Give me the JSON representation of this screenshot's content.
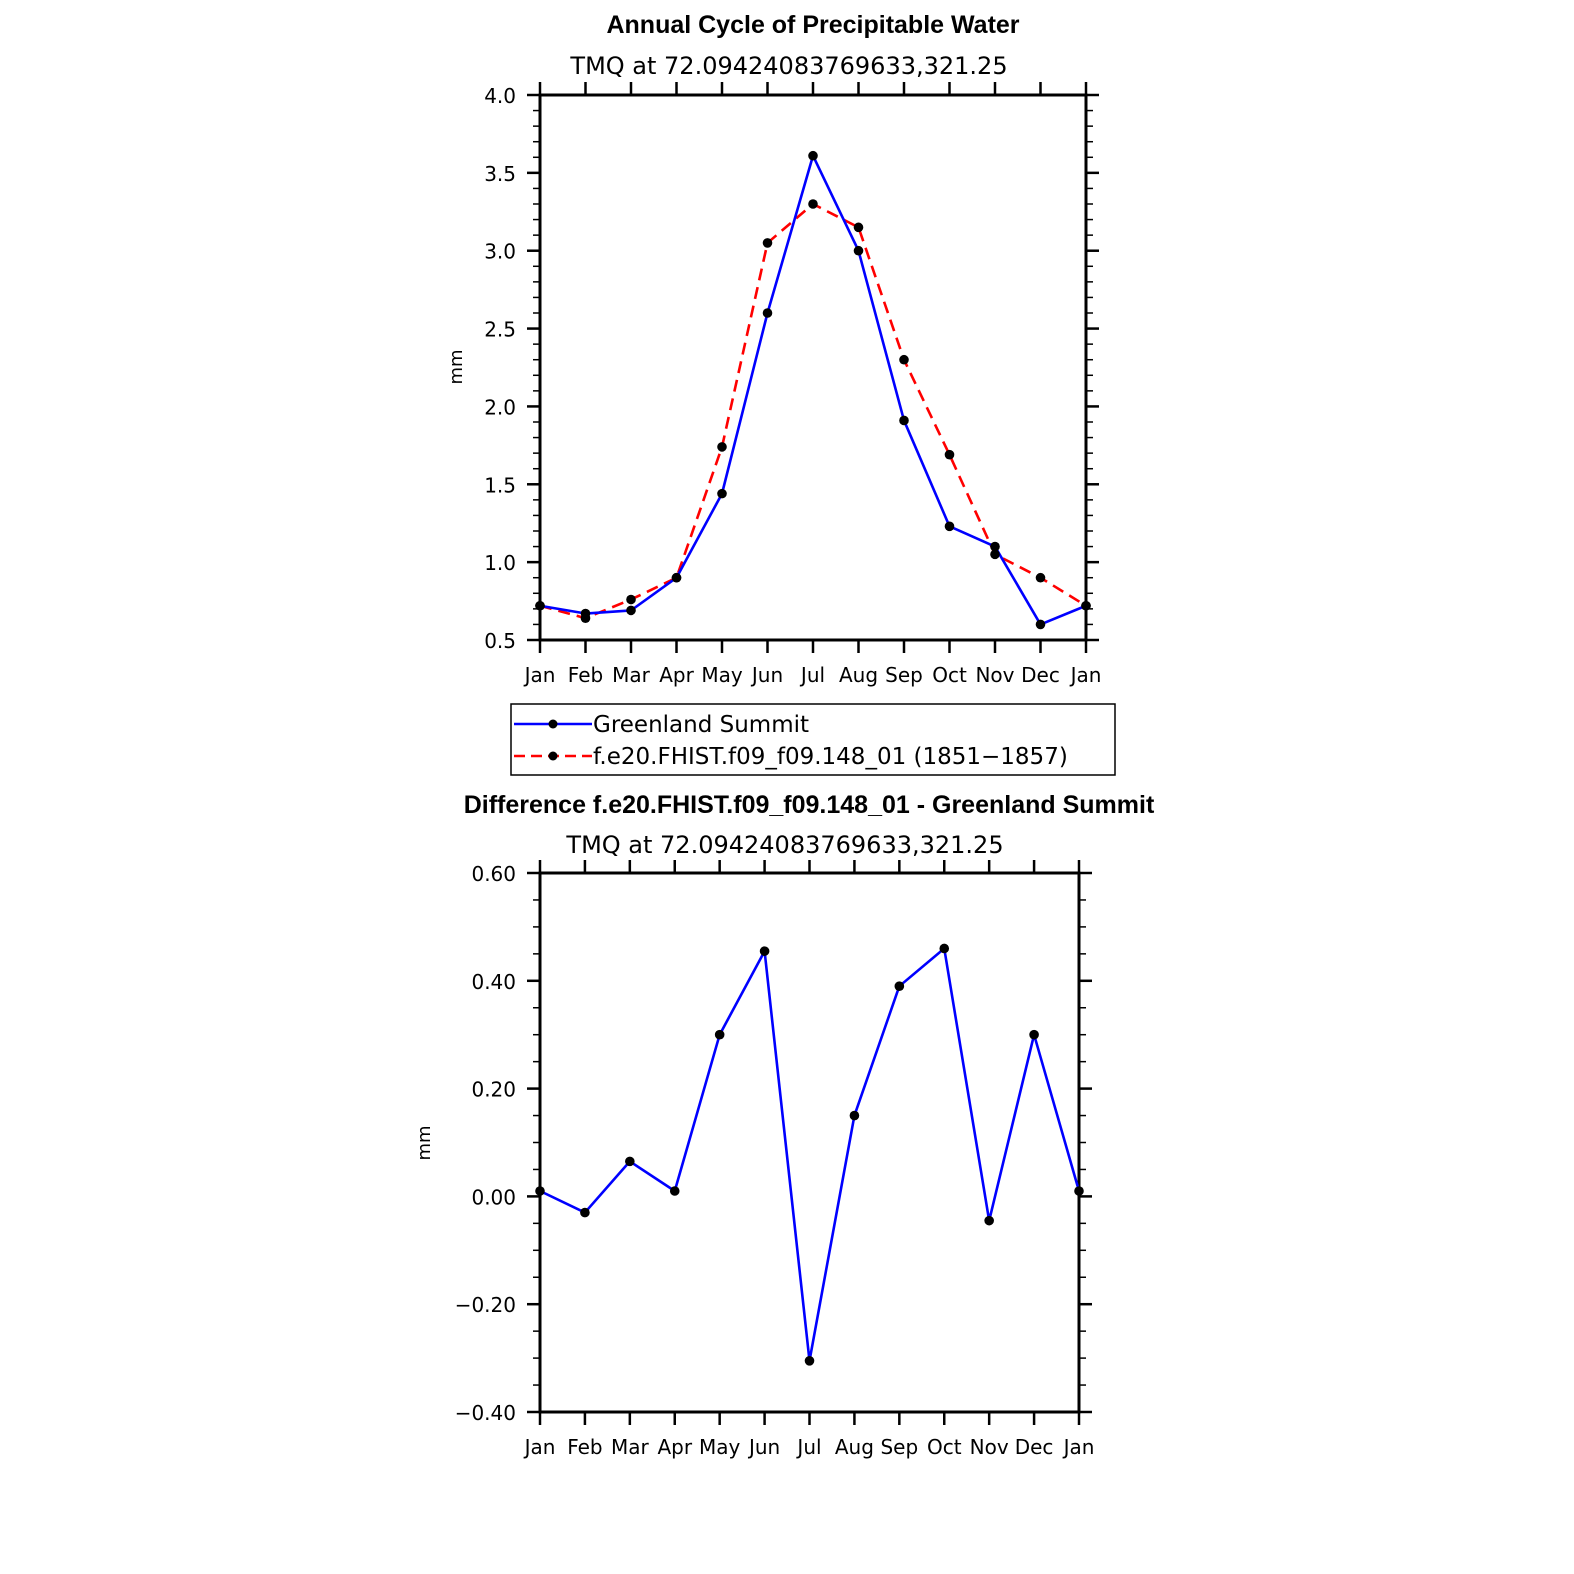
{
  "chart_data": [
    {
      "type": "line",
      "title": "Annual Cycle of Precipitable Water",
      "subtitle": "TMQ at 72.09424083769633,321.25",
      "ylabel": "mm",
      "xlabel": "",
      "categories": [
        "Jan",
        "Feb",
        "Mar",
        "Apr",
        "May",
        "Jun",
        "Jul",
        "Aug",
        "Sep",
        "Oct",
        "Nov",
        "Dec",
        "Jan"
      ],
      "ylim": [
        0.5,
        4.0
      ],
      "yticks": [
        0.5,
        1.0,
        1.5,
        2.0,
        2.5,
        3.0,
        3.5,
        4.0
      ],
      "ytick_labels": [
        "0.5",
        "1.0",
        "1.5",
        "2.0",
        "2.5",
        "3.0",
        "3.5",
        "4.0"
      ],
      "series": [
        {
          "name": "Greenland Summit",
          "color": "#0000ff",
          "dash": "solid",
          "values": [
            0.72,
            0.67,
            0.69,
            0.9,
            1.44,
            2.6,
            3.61,
            3.0,
            1.91,
            1.23,
            1.1,
            0.6,
            0.72
          ]
        },
        {
          "name": "f.e20.FHIST.f09_f09.148_01 (1851−1857)",
          "color": "#ff0000",
          "dash": "dashed",
          "values": [
            0.72,
            0.64,
            0.76,
            0.9,
            1.74,
            3.05,
            3.3,
            3.15,
            2.3,
            1.69,
            1.05,
            0.9,
            0.72
          ]
        }
      ],
      "legend": "below"
    },
    {
      "type": "line",
      "title": "Difference f.e20.FHIST.f09_f09.148_01 - Greenland Summit",
      "subtitle": "TMQ at 72.09424083769633,321.25",
      "ylabel": "mm",
      "xlabel": "",
      "categories": [
        "Jan",
        "Feb",
        "Mar",
        "Apr",
        "May",
        "Jun",
        "Jul",
        "Aug",
        "Sep",
        "Oct",
        "Nov",
        "Dec",
        "Jan"
      ],
      "ylim": [
        -0.4,
        0.6
      ],
      "yticks": [
        -0.4,
        -0.2,
        0.0,
        0.2,
        0.4,
        0.6
      ],
      "ytick_labels": [
        "−0.40",
        "−0.20",
        "0.00",
        "0.20",
        "0.40",
        "0.60"
      ],
      "series": [
        {
          "name": "Difference",
          "color": "#0000ff",
          "dash": "solid",
          "values": [
            0.01,
            -0.03,
            0.065,
            0.01,
            0.3,
            0.455,
            -0.305,
            0.15,
            0.39,
            0.46,
            -0.045,
            0.3,
            0.01
          ]
        }
      ]
    }
  ]
}
